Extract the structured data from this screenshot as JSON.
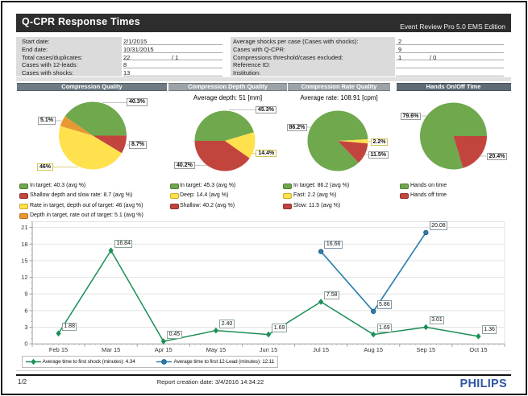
{
  "page": {
    "title": "Q-CPR Response Times",
    "edition": "Event Review Pro 5.0 EMS Edition"
  },
  "summary": {
    "left": [
      {
        "label": "Start date:",
        "value": "2/1/2015",
        "value2": ""
      },
      {
        "label": "End date:",
        "value": "10/31/2015",
        "value2": ""
      },
      {
        "label": "Total cases/duplicates:",
        "value": "22",
        "value2": "/  1"
      },
      {
        "label": "Cases with 12-leads:",
        "value": "8",
        "value2": ""
      },
      {
        "label": "Cases with shocks:",
        "value": "13",
        "value2": ""
      }
    ],
    "right": [
      {
        "label": "Average shocks per case (Cases with shocks):",
        "value": "2",
        "value2": ""
      },
      {
        "label": "Cases with Q-CPR:",
        "value": "9",
        "value2": ""
      },
      {
        "label": "Compressions threshold/cases excluded:",
        "value": "1",
        "value2": "/  0"
      },
      {
        "label": "Reference ID:",
        "value": "",
        "value2": ""
      },
      {
        "label": "Institution:",
        "value": "",
        "value2": ""
      }
    ]
  },
  "colors": {
    "pie_green": "#6fa84d",
    "pie_red": "#c2453d",
    "pie_yellow": "#ffe14e",
    "pie_orange": "#e79833",
    "line_green": "#1b8f56",
    "line_blue": "#2f81ad",
    "header_dark1": "#6e7b84",
    "header_light": "#9ca3a8",
    "header_dark4": "#5e6b75",
    "philips_blue": "#3056a4"
  },
  "chart_data": [
    {
      "type": "pie",
      "title": "Compression Quality",
      "subtitle": "",
      "start_angle": -55.1,
      "slices": [
        {
          "label": "In target",
          "value": 40.3,
          "pct_label": "40.3%",
          "color": "pie_green"
        },
        {
          "label": "Shallow depth and slow rate",
          "value": 8.7,
          "pct_label": "8.7%",
          "color": "pie_red"
        },
        {
          "label": "Rate in target, depth out of target",
          "value": 46,
          "pct_label": "46%",
          "color": "pie_yellow"
        },
        {
          "label": "Depth in target, rate out of target",
          "value": 5.1,
          "pct_label": "5.1%",
          "color": "pie_orange"
        }
      ],
      "legend": [
        "In target: 40.3  (avg %)",
        "Shallow depth and slow rate: 8.7  (avg %)",
        "Rate in target, depth out of target: 46  (avg %)",
        "Depth in target, rate out of target: 5.1  (avg %)"
      ]
    },
    {
      "type": "pie",
      "title": "Compression Depth Quality",
      "subtitle": "Average depth: 51 [mm]",
      "start_angle": -90,
      "slices": [
        {
          "label": "In target",
          "value": 45.3,
          "pct_label": "45.3%",
          "color": "pie_green"
        },
        {
          "label": "Deep",
          "value": 14.4,
          "pct_label": "14.4%",
          "color": "pie_yellow"
        },
        {
          "label": "Shallow",
          "value": 40.2,
          "pct_label": "40.2%",
          "color": "pie_red"
        }
      ],
      "legend": [
        "In target: 45.3  (avg %)",
        "Deep: 14.4  (avg %)",
        "Shallow: 40.2  (avg %)"
      ]
    },
    {
      "type": "pie",
      "title": "Compression Rate Quality",
      "subtitle": "Average rate: 108.91 [cpm]",
      "start_angle": 136.4,
      "slices": [
        {
          "label": "In target",
          "value": 86.2,
          "pct_label": "86.2%",
          "color": "pie_green"
        },
        {
          "label": "Fast",
          "value": 2.2,
          "pct_label": "2.2%",
          "color": "pie_yellow"
        },
        {
          "label": "Slow",
          "value": 11.5,
          "pct_label": "11.5%",
          "color": "pie_red"
        }
      ],
      "legend": [
        "In target: 86.2  (avg %)",
        "Fast: 2.2  (avg %)",
        "Slow: 11.5  (avg %)"
      ]
    },
    {
      "type": "pie",
      "title": "Hands On/Off Time",
      "subtitle": "",
      "start_angle": 163.4,
      "slices": [
        {
          "label": "Hands on time",
          "value": 79.6,
          "pct_label": "79.6%",
          "color": "pie_green"
        },
        {
          "label": "Hands off time",
          "value": 20.4,
          "pct_label": "20.4%",
          "color": "pie_red"
        }
      ],
      "legend": [
        "Hands on time",
        "Hands off time"
      ]
    },
    {
      "type": "line",
      "categories": [
        "Feb 15",
        "Mar 15",
        "Apr 15",
        "May 15",
        "Jun 15",
        "Jul 15",
        "Aug 15",
        "Sep 15",
        "Oct 15"
      ],
      "ylim": [
        0,
        21
      ],
      "ytick_step": 3,
      "yticks": [
        0,
        3,
        6,
        9,
        12,
        15,
        18,
        21
      ],
      "series": [
        {
          "name": "Average time to first shock (minutes): 4.34",
          "color": "line_green",
          "marker": "diamond",
          "values": [
            1.88,
            16.84,
            0.45,
            2.4,
            1.69,
            7.58,
            1.69,
            3.01,
            1.36
          ],
          "labels": [
            "1.88",
            "16.84",
            "0.45",
            "2.40",
            "1.69",
            "7.58",
            "1.69",
            "3.01",
            "1.36"
          ]
        },
        {
          "name": "Average time to first 12-Lead (minutes): 12.11",
          "color": "line_blue",
          "marker": "circle",
          "values": [
            null,
            null,
            null,
            null,
            null,
            16.66,
            5.86,
            20.08,
            null
          ],
          "labels": [
            "",
            "",
            "",
            "",
            "",
            "16.66",
            "5.86",
            "20.08",
            ""
          ]
        }
      ]
    }
  ],
  "footer": {
    "page_label": "1/2",
    "creation": "Report creation date: 3/4/2016 14:34:22",
    "brand": "PHILIPS"
  }
}
